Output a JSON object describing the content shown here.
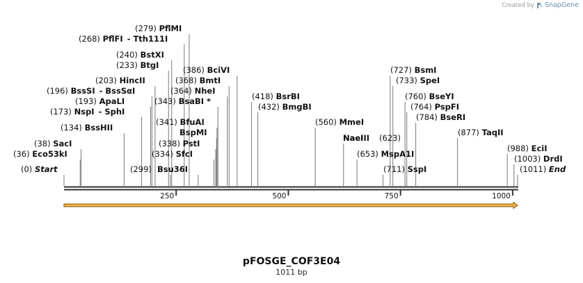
{
  "sequence": {
    "name": "pFOSGE_COF3E04",
    "length_label": "1011 bp",
    "length_bp": 1011
  },
  "watermark": {
    "prefix": "Created by",
    "brand": "SnapGene",
    "icon": "snapgene-logo-icon"
  },
  "axis": {
    "ticks": [
      {
        "bp": 250,
        "label": "250"
      },
      {
        "bp": 500,
        "label": "500"
      },
      {
        "bp": 750,
        "label": "750"
      },
      {
        "bp": 1000,
        "label": "1000"
      }
    ]
  },
  "feature": {
    "name": "orf-arrow",
    "start": 0,
    "end": 1011,
    "color": "#f0b24a",
    "stroke": "#8a5a12"
  },
  "colors": {
    "backbone": "#333333",
    "leader": "#777777"
  },
  "sites": [
    {
      "name": "Start",
      "pos": "(0)",
      "bp": 0,
      "italic": true
    },
    {
      "name": "Eco53kI",
      "pos": "(36)",
      "bp": 36
    },
    {
      "name": "SacI",
      "pos": "(38)",
      "bp": 38
    },
    {
      "name": "BssHII",
      "pos": "(134)",
      "bp": 134
    },
    {
      "name": "NspI",
      "pos": "(173)",
      "bp": 173,
      "suffix": "- SphI"
    },
    {
      "name": "ApaLI",
      "pos": "(193)",
      "bp": 193
    },
    {
      "name": "BssSI",
      "pos": "(196)",
      "bp": 196,
      "suffix": "- BssSαI"
    },
    {
      "name": "HincII",
      "pos": "(203)",
      "bp": 203
    },
    {
      "name": "",
      "pos": "(299)",
      "bp": 299
    },
    {
      "name": "BtgI",
      "pos": "(233)",
      "bp": 233
    },
    {
      "name": "BstXI",
      "pos": "(240)",
      "bp": 240
    },
    {
      "name": "PflFI",
      "pos": "(268)",
      "bp": 268,
      "suffix": "- Tth111I"
    },
    {
      "name": "PflMI",
      "pos": "(279)",
      "bp": 279
    },
    {
      "name": "Bsu36I",
      "pos": "",
      "bp": 237
    },
    {
      "name": "SfcI",
      "pos": "(334)",
      "bp": 334
    },
    {
      "name": "PstI",
      "pos": "(338)",
      "bp": 338
    },
    {
      "name": "BspMI",
      "pos": "",
      "bp": 340
    },
    {
      "name": "BfuAI",
      "pos": "(341)",
      "bp": 341
    },
    {
      "name": "BsaBI *",
      "pos": "(343)",
      "bp": 343
    },
    {
      "name": "NheI",
      "pos": "(364)",
      "bp": 364
    },
    {
      "name": "BmtI",
      "pos": "(368)",
      "bp": 368
    },
    {
      "name": "BciVI",
      "pos": "(386)",
      "bp": 386
    },
    {
      "name": "BsrBI",
      "pos": "(418)",
      "bp": 418
    },
    {
      "name": "BmgBI",
      "pos": "(432)",
      "bp": 432
    },
    {
      "name": "MmeI",
      "pos": "(560)",
      "bp": 560
    },
    {
      "name": "NaeI",
      "pos": "",
      "bp": 623
    },
    {
      "name": "MspA1I",
      "pos": "(653)",
      "bp": 653
    },
    {
      "name": "SspI",
      "pos": "(711)",
      "bp": 711
    },
    {
      "name": "BsmI",
      "pos": "(727)",
      "bp": 727
    },
    {
      "name": "SpeI",
      "pos": "(733)",
      "bp": 733
    },
    {
      "name": "BseYI",
      "pos": "(760)",
      "bp": 760
    },
    {
      "name": "PspFI",
      "pos": "(764)",
      "bp": 764
    },
    {
      "name": "BseRI",
      "pos": "(784)",
      "bp": 784
    },
    {
      "name": "TaqII",
      "pos": "(877)",
      "bp": 877
    },
    {
      "name": "EciI",
      "pos": "(988)",
      "bp": 988
    },
    {
      "name": "DrdI",
      "pos": "(1003)",
      "bp": 1003
    },
    {
      "name": "End",
      "pos": "(1011)",
      "bp": 1011,
      "italic": true
    }
  ],
  "labels_text": {
    "NaeI_full": "NaeI",
    "BsaAI_region": "(623)"
  }
}
